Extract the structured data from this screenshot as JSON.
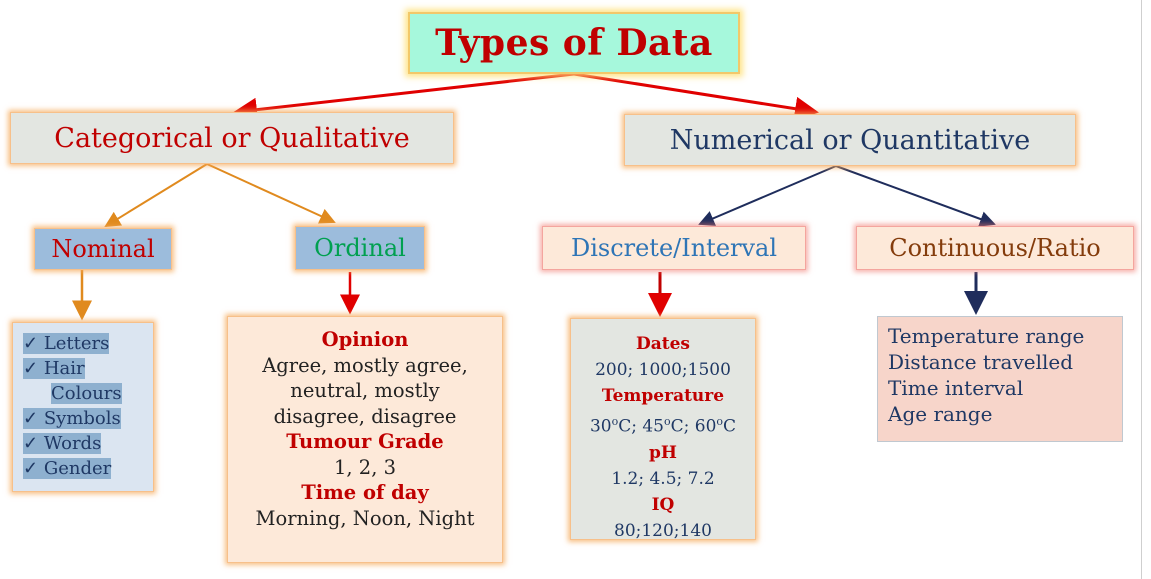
{
  "title": "Types of Data",
  "categorical": {
    "label": "Categorical or Qualitative",
    "nominal": {
      "label": "Nominal",
      "items": [
        "Letters",
        "Hair",
        "Colours",
        "Symbols",
        "Words",
        "Gender"
      ]
    },
    "ordinal": {
      "label": "Ordinal",
      "h1": "Opinion",
      "l1": "Agree, mostly agree,",
      "l2": "neutral, mostly",
      "l3": "disagree, disagree",
      "h2": "Tumour Grade",
      "l4": "1, 2, 3",
      "h3": "Time of day",
      "l5": "Morning, Noon, Night"
    }
  },
  "numerical": {
    "label": "Numerical or Quantitative",
    "discrete": {
      "label": "Discrete/Interval",
      "h1": "Dates",
      "v1": "200; 1000;1500",
      "h2": "Temperature",
      "t1": "30",
      "t2": "C; 45",
      "t3": "C; 60",
      "t4": "C",
      "deg": "o",
      "h3": "pH",
      "v3": "1.2; 4.5; 7.2",
      "h4": "IQ",
      "v4": "80;120;140"
    },
    "continuous": {
      "label": "Continuous/Ratio",
      "items": [
        "Temperature range",
        "Distance travelled",
        "Time interval",
        "Age range"
      ]
    }
  },
  "colors": {
    "title_text": "#c00000",
    "title_bg": "#a6f8dc",
    "red_arrow": "#e00000",
    "orange_arrow": "#e08a1e",
    "navy_arrow": "#1f2d5c"
  }
}
